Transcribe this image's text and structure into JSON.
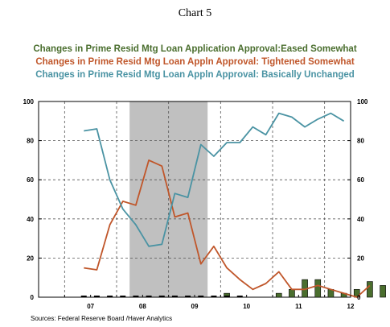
{
  "chart_data": {
    "type": "bar+line",
    "title": "Chart 5",
    "legend_placement": "top",
    "series": [
      {
        "name": "Changes in Prime Resid Mtg Loan Application Approval:Eased Somewhat",
        "type": "bar",
        "color": "#4a6e2e",
        "values": [
          0,
          0,
          0,
          0,
          0,
          0,
          0,
          0,
          0,
          0,
          0,
          2,
          0,
          0,
          0,
          2,
          4,
          9,
          9,
          4,
          2,
          4,
          8,
          6,
          4,
          6,
          4
        ]
      },
      {
        "name": "Changes in Prime Resid Mtg Loan Appln Approval: Tightened Somewhat",
        "type": "line",
        "color": "#c0562a",
        "values": [
          15,
          14,
          37,
          49,
          47,
          70,
          67,
          41,
          43,
          17,
          26,
          15,
          9,
          4,
          7,
          13,
          4,
          4,
          6,
          4,
          2,
          0,
          6
        ]
      },
      {
        "name": "Changes in Prime Resid Mtg Loan Appln Approval: Basically Unchanged",
        "type": "line",
        "color": "#4a93a3",
        "values": [
          85,
          86,
          60,
          45,
          37,
          26,
          27,
          53,
          51,
          78,
          72,
          79,
          79,
          87,
          83,
          94,
          92,
          87,
          91,
          94,
          90
        ]
      }
    ],
    "zero_markers": [
      0,
      0,
      0,
      0,
      0,
      0,
      0,
      0,
      0,
      0,
      0,
      0,
      0
    ],
    "shaded_region": [
      2007.75,
      2009.25
    ],
    "xlim": [
      2006,
      2012
    ],
    "ylim": [
      0,
      100
    ],
    "x_ticks": [
      {
        "value": 2007,
        "label": "07"
      },
      {
        "value": 2008,
        "label": "08"
      },
      {
        "value": 2009,
        "label": "09"
      },
      {
        "value": 2010,
        "label": "10"
      },
      {
        "value": 2011,
        "label": "11"
      },
      {
        "value": 2012,
        "label": "12"
      }
    ],
    "y_ticks_left": [
      "0",
      "20",
      "40",
      "60",
      "80",
      "100"
    ],
    "y_ticks_right": [
      "0",
      "20",
      "40",
      "60",
      "80",
      "100"
    ],
    "grid": true,
    "source": "Sources:  Federal Reserve Board /Haver Analytics"
  }
}
